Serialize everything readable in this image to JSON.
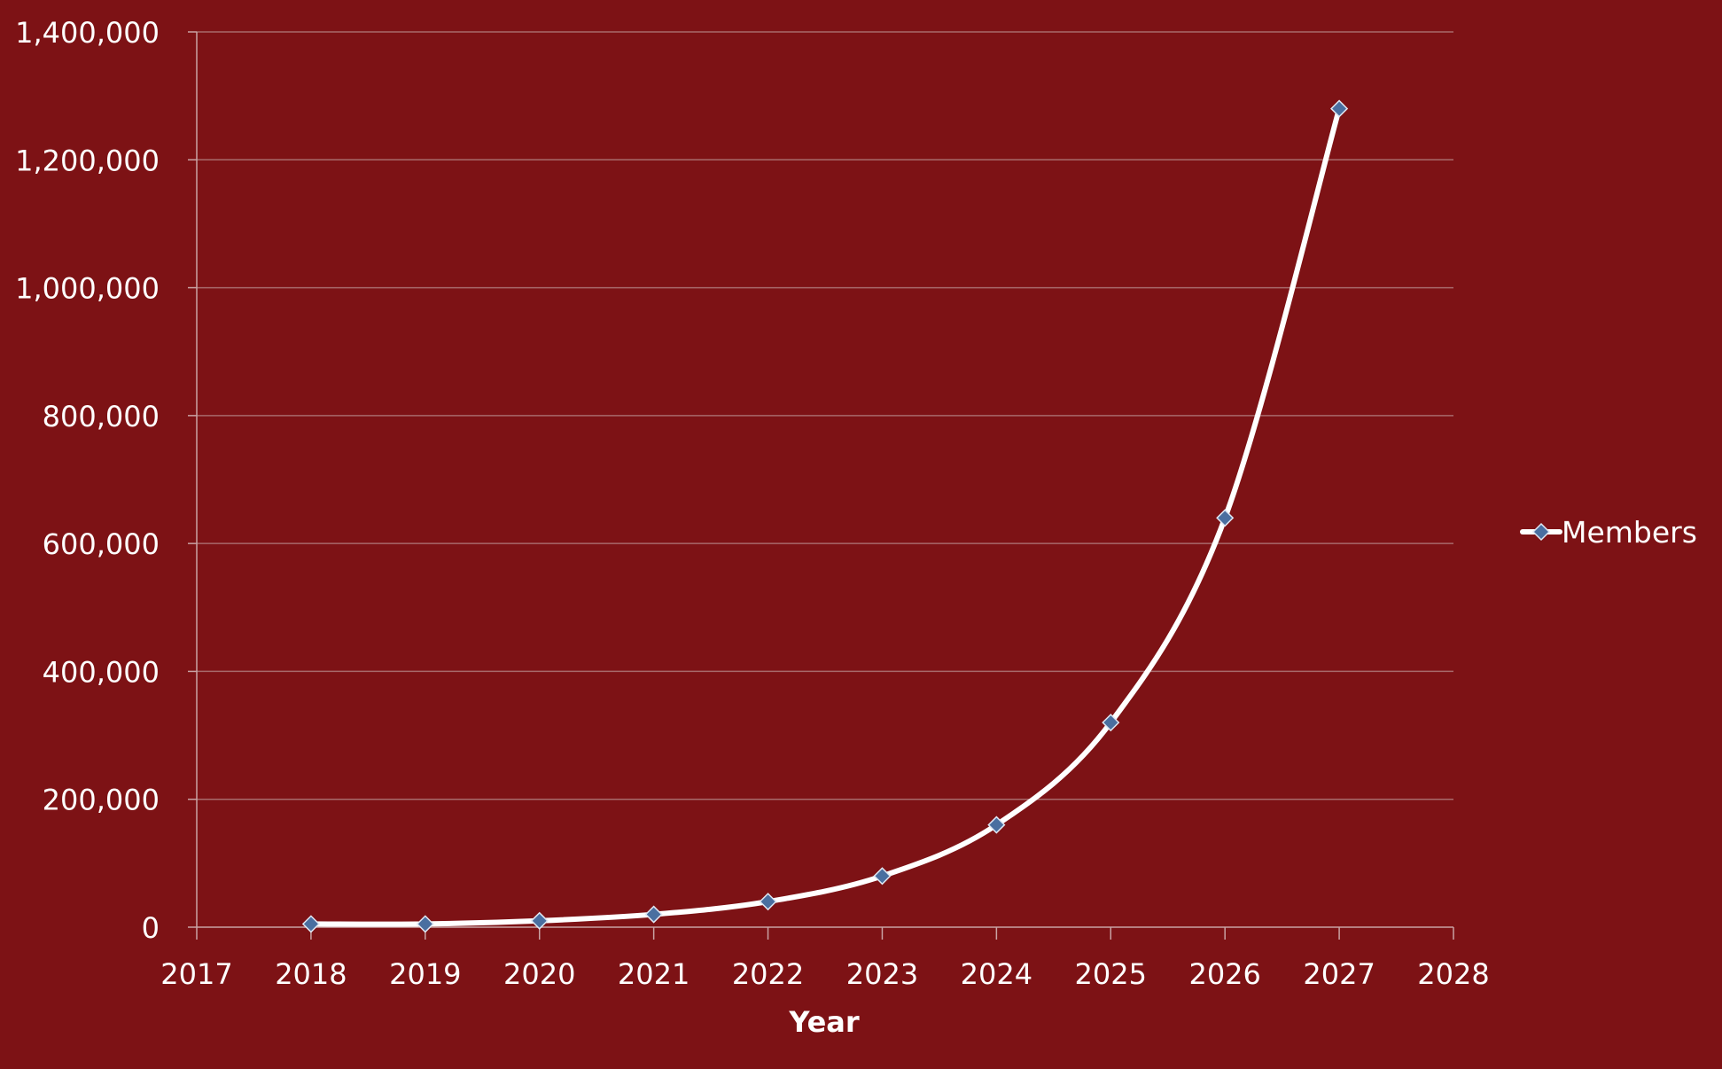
{
  "colors": {
    "background": "#7d1215",
    "grid": "#a86a6b",
    "axis": "#c9a3a4",
    "line": "#ffffff",
    "marker": "#4a6fa0",
    "marker_stroke": "#dfe7f2",
    "text": "#ffffff"
  },
  "chart_data": {
    "type": "line",
    "xlabel": "Year",
    "ylabel": "",
    "x_ticks": [
      "2017",
      "2018",
      "2019",
      "2020",
      "2021",
      "2022",
      "2023",
      "2024",
      "2025",
      "2026",
      "2027",
      "2028"
    ],
    "y_ticks": [
      "0",
      "200,000",
      "400,000",
      "600,000",
      "800,000",
      "1,000,000",
      "1,200,000",
      "1,400,000"
    ],
    "xlim": [
      2017,
      2028
    ],
    "ylim": [
      0,
      1400000
    ],
    "grid": true,
    "smooth": true,
    "legend_position": "right",
    "series": [
      {
        "name": "Members",
        "x": [
          2018,
          2019,
          2020,
          2021,
          2022,
          2023,
          2024,
          2025,
          2026,
          2027
        ],
        "y": [
          5000,
          5000,
          10000,
          20000,
          40000,
          80000,
          160000,
          320000,
          640000,
          1280000
        ],
        "marker": "diamond-icon"
      }
    ]
  }
}
